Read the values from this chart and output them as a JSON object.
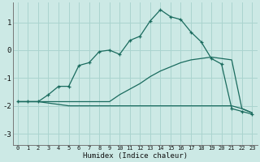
{
  "xlabel": "Humidex (Indice chaleur)",
  "background_color": "#cce9e5",
  "grid_color": "#aad4cf",
  "line_color": "#1a6b5e",
  "xlim": [
    -0.5,
    23.5
  ],
  "ylim": [
    -3.4,
    1.7
  ],
  "yticks": [
    -3,
    -2,
    -1,
    0,
    1
  ],
  "xticks": [
    0,
    1,
    2,
    3,
    4,
    5,
    6,
    7,
    8,
    9,
    10,
    11,
    12,
    13,
    14,
    15,
    16,
    17,
    18,
    19,
    20,
    21,
    22,
    23
  ],
  "line1_x": [
    0,
    1,
    2,
    3,
    4,
    5,
    6,
    7,
    8,
    9,
    10,
    11,
    12,
    13,
    14,
    15,
    16,
    17,
    18,
    19,
    20,
    21,
    22,
    23
  ],
  "line1_y": [
    -1.85,
    -1.85,
    -1.85,
    -1.6,
    -1.3,
    -1.3,
    -0.55,
    -0.45,
    -0.05,
    0.0,
    -0.15,
    0.35,
    0.5,
    1.05,
    1.45,
    1.2,
    1.1,
    0.65,
    0.3,
    -0.3,
    -0.5,
    -2.1,
    -2.2,
    -2.3
  ],
  "line2_x": [
    0,
    1,
    2,
    3,
    4,
    5,
    6,
    7,
    8,
    9,
    10,
    11,
    12,
    13,
    14,
    15,
    16,
    17,
    18,
    19,
    20,
    21,
    22,
    23
  ],
  "line2_y": [
    -1.85,
    -1.85,
    -1.85,
    -1.85,
    -1.85,
    -1.85,
    -1.85,
    -1.85,
    -1.85,
    -1.85,
    -1.6,
    -1.4,
    -1.2,
    -0.95,
    -0.75,
    -0.6,
    -0.45,
    -0.35,
    -0.3,
    -0.25,
    -0.3,
    -0.35,
    -2.1,
    -2.25
  ],
  "line3_x": [
    0,
    1,
    2,
    3,
    4,
    5,
    6,
    7,
    8,
    9,
    10,
    11,
    12,
    13,
    14,
    15,
    16,
    17,
    18,
    19,
    20,
    21,
    22,
    23
  ],
  "line3_y": [
    -1.85,
    -1.85,
    -1.85,
    -1.9,
    -1.95,
    -2.0,
    -2.0,
    -2.0,
    -2.0,
    -2.0,
    -2.0,
    -2.0,
    -2.0,
    -2.0,
    -2.0,
    -2.0,
    -2.0,
    -2.0,
    -2.0,
    -2.0,
    -2.0,
    -2.0,
    -2.1,
    -2.25
  ]
}
